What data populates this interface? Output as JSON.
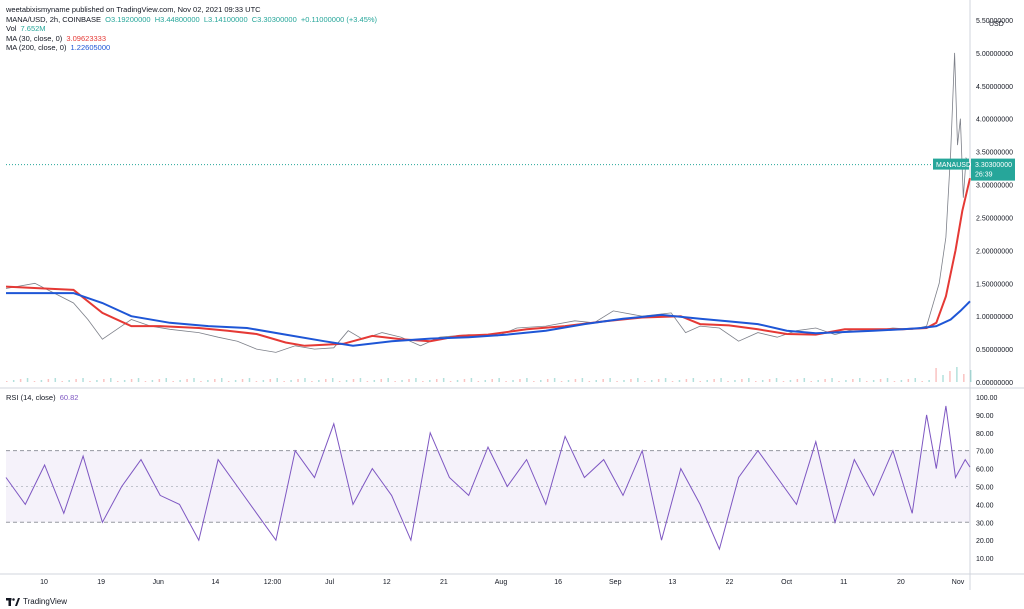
{
  "header": {
    "published": "weetabixismyname published on TradingView.com, Nov 02, 2021 09:33 UTC",
    "symbol": "MANA/USD, 2h, COINBASE",
    "ohlc": {
      "o": "O3.19200000",
      "h": "H3.44800000",
      "l": "L3.14100000",
      "c": "C3.30300000",
      "chg": "+0.11000000 (+3.45%)"
    },
    "vol_label": "Vol",
    "vol_value": "7.652M",
    "ma30_label": "MA (30, close, 0)",
    "ma30_value": "3.09623333",
    "ma200_label": "MA (200, close, 0)",
    "ma200_value": "1.22605000"
  },
  "rsi_panel": {
    "label": "RSI (14, close)",
    "value": "60.82"
  },
  "footer": {
    "brand": "TradingView"
  },
  "colors": {
    "up": "#26a69a",
    "down": "#ef5350",
    "ma30": "#e53935",
    "ma200": "#1e56d6",
    "rsi": "#7e57c2"
  },
  "chart_data": {
    "type": "line",
    "price_axis": {
      "currency": "USD",
      "ticks": [
        "5.50000000",
        "5.00000000",
        "4.50000000",
        "4.00000000",
        "3.50000000",
        "3.00000000",
        "2.50000000",
        "2.00000000",
        "1.50000000",
        "1.00000000",
        "0.50000000",
        "0.00000000"
      ],
      "tick_values": [
        5.5,
        5.0,
        4.5,
        4.0,
        3.5,
        3.0,
        2.5,
        2.0,
        1.5,
        1.0,
        0.5,
        0.0
      ],
      "last_price_symbol": "MANAUSD",
      "last_price": "3.30300000",
      "countdown": "26:39",
      "last_value": 3.303
    },
    "rsi_axis": {
      "ticks": [
        "100.00",
        "90.00",
        "80.00",
        "70.00",
        "60.00",
        "50.00",
        "40.00",
        "30.00",
        "20.00",
        "10.00"
      ],
      "tick_values": [
        100,
        90,
        80,
        70,
        60,
        50,
        40,
        30,
        20,
        10
      ],
      "band": [
        30,
        70
      ],
      "mid": 50
    },
    "time_axis": [
      "10",
      "19",
      "Jun",
      "14",
      "12:00",
      "Jul",
      "12",
      "21",
      "Aug",
      "16",
      "Sep",
      "13",
      "22",
      "Oct",
      "11",
      "20",
      "Nov"
    ],
    "series": [
      {
        "name": "MA (30, close, 0)",
        "points": [
          [
            0,
            1.45
          ],
          [
            0.04,
            1.42
          ],
          [
            0.07,
            1.4
          ],
          [
            0.1,
            1.05
          ],
          [
            0.13,
            0.85
          ],
          [
            0.16,
            0.85
          ],
          [
            0.2,
            0.82
          ],
          [
            0.23,
            0.78
          ],
          [
            0.26,
            0.73
          ],
          [
            0.29,
            0.6
          ],
          [
            0.31,
            0.55
          ],
          [
            0.35,
            0.58
          ],
          [
            0.38,
            0.7
          ],
          [
            0.41,
            0.65
          ],
          [
            0.44,
            0.62
          ],
          [
            0.47,
            0.7
          ],
          [
            0.5,
            0.72
          ],
          [
            0.54,
            0.8
          ],
          [
            0.58,
            0.85
          ],
          [
            0.62,
            0.92
          ],
          [
            0.66,
            0.98
          ],
          [
            0.7,
            1.0
          ],
          [
            0.72,
            0.88
          ],
          [
            0.75,
            0.86
          ],
          [
            0.78,
            0.8
          ],
          [
            0.81,
            0.73
          ],
          [
            0.84,
            0.72
          ],
          [
            0.87,
            0.8
          ],
          [
            0.9,
            0.8
          ],
          [
            0.93,
            0.8
          ],
          [
            0.955,
            0.82
          ],
          [
            0.965,
            0.9
          ],
          [
            0.975,
            1.3
          ],
          [
            0.985,
            2.0
          ],
          [
            0.992,
            2.6
          ],
          [
            1.0,
            3.096
          ]
        ]
      },
      {
        "name": "MA (200, close, 0)",
        "points": [
          [
            0,
            1.35
          ],
          [
            0.04,
            1.35
          ],
          [
            0.07,
            1.35
          ],
          [
            0.1,
            1.2
          ],
          [
            0.13,
            1.0
          ],
          [
            0.17,
            0.9
          ],
          [
            0.21,
            0.85
          ],
          [
            0.25,
            0.82
          ],
          [
            0.29,
            0.72
          ],
          [
            0.33,
            0.62
          ],
          [
            0.36,
            0.55
          ],
          [
            0.4,
            0.62
          ],
          [
            0.44,
            0.66
          ],
          [
            0.48,
            0.68
          ],
          [
            0.52,
            0.72
          ],
          [
            0.56,
            0.78
          ],
          [
            0.6,
            0.88
          ],
          [
            0.64,
            0.96
          ],
          [
            0.68,
            1.02
          ],
          [
            0.72,
            0.96
          ],
          [
            0.75,
            0.92
          ],
          [
            0.78,
            0.88
          ],
          [
            0.81,
            0.78
          ],
          [
            0.84,
            0.74
          ],
          [
            0.87,
            0.76
          ],
          [
            0.9,
            0.78
          ],
          [
            0.93,
            0.8
          ],
          [
            0.95,
            0.82
          ],
          [
            0.965,
            0.85
          ],
          [
            0.98,
            0.95
          ],
          [
            0.99,
            1.08
          ],
          [
            1.0,
            1.226
          ]
        ]
      }
    ],
    "price_path": [
      [
        0,
        1.42
      ],
      [
        0.03,
        1.5
      ],
      [
        0.05,
        1.35
      ],
      [
        0.07,
        1.2
      ],
      [
        0.085,
        0.95
      ],
      [
        0.1,
        0.65
      ],
      [
        0.115,
        0.8
      ],
      [
        0.13,
        0.95
      ],
      [
        0.15,
        0.85
      ],
      [
        0.17,
        0.8
      ],
      [
        0.2,
        0.75
      ],
      [
        0.22,
        0.68
      ],
      [
        0.24,
        0.62
      ],
      [
        0.26,
        0.5
      ],
      [
        0.28,
        0.45
      ],
      [
        0.3,
        0.55
      ],
      [
        0.32,
        0.5
      ],
      [
        0.34,
        0.52
      ],
      [
        0.355,
        0.78
      ],
      [
        0.37,
        0.65
      ],
      [
        0.39,
        0.75
      ],
      [
        0.41,
        0.68
      ],
      [
        0.43,
        0.55
      ],
      [
        0.45,
        0.68
      ],
      [
        0.48,
        0.72
      ],
      [
        0.51,
        0.7
      ],
      [
        0.53,
        0.82
      ],
      [
        0.56,
        0.85
      ],
      [
        0.59,
        0.93
      ],
      [
        0.61,
        0.9
      ],
      [
        0.63,
        1.08
      ],
      [
        0.66,
        1.0
      ],
      [
        0.69,
        1.05
      ],
      [
        0.705,
        0.75
      ],
      [
        0.72,
        0.85
      ],
      [
        0.74,
        0.82
      ],
      [
        0.76,
        0.62
      ],
      [
        0.78,
        0.75
      ],
      [
        0.8,
        0.68
      ],
      [
        0.82,
        0.78
      ],
      [
        0.84,
        0.82
      ],
      [
        0.86,
        0.72
      ],
      [
        0.88,
        0.8
      ],
      [
        0.9,
        0.78
      ],
      [
        0.92,
        0.82
      ],
      [
        0.94,
        0.8
      ],
      [
        0.955,
        0.85
      ],
      [
        0.962,
        1.2
      ],
      [
        0.968,
        1.5
      ],
      [
        0.975,
        2.2
      ],
      [
        0.98,
        3.5
      ],
      [
        0.984,
        5.0
      ],
      [
        0.987,
        3.6
      ],
      [
        0.99,
        4.0
      ],
      [
        0.993,
        2.8
      ],
      [
        0.996,
        3.4
      ],
      [
        1.0,
        3.303
      ]
    ],
    "rsi_path": [
      [
        0,
        55
      ],
      [
        0.02,
        40
      ],
      [
        0.04,
        62
      ],
      [
        0.06,
        35
      ],
      [
        0.08,
        67
      ],
      [
        0.1,
        30
      ],
      [
        0.12,
        50
      ],
      [
        0.14,
        65
      ],
      [
        0.16,
        45
      ],
      [
        0.18,
        40
      ],
      [
        0.2,
        20
      ],
      [
        0.22,
        65
      ],
      [
        0.24,
        50
      ],
      [
        0.26,
        35
      ],
      [
        0.28,
        20
      ],
      [
        0.3,
        70
      ],
      [
        0.32,
        55
      ],
      [
        0.34,
        85
      ],
      [
        0.36,
        40
      ],
      [
        0.38,
        60
      ],
      [
        0.4,
        45
      ],
      [
        0.42,
        20
      ],
      [
        0.44,
        80
      ],
      [
        0.46,
        55
      ],
      [
        0.48,
        45
      ],
      [
        0.5,
        72
      ],
      [
        0.52,
        50
      ],
      [
        0.54,
        65
      ],
      [
        0.56,
        40
      ],
      [
        0.58,
        78
      ],
      [
        0.6,
        55
      ],
      [
        0.62,
        65
      ],
      [
        0.64,
        45
      ],
      [
        0.66,
        70
      ],
      [
        0.68,
        20
      ],
      [
        0.7,
        60
      ],
      [
        0.72,
        40
      ],
      [
        0.74,
        15
      ],
      [
        0.76,
        55
      ],
      [
        0.78,
        70
      ],
      [
        0.8,
        55
      ],
      [
        0.82,
        40
      ],
      [
        0.84,
        75
      ],
      [
        0.86,
        30
      ],
      [
        0.88,
        65
      ],
      [
        0.9,
        45
      ],
      [
        0.92,
        70
      ],
      [
        0.94,
        35
      ],
      [
        0.955,
        90
      ],
      [
        0.965,
        60
      ],
      [
        0.975,
        95
      ],
      [
        0.985,
        55
      ],
      [
        0.995,
        65
      ],
      [
        1.0,
        60.82
      ]
    ]
  }
}
